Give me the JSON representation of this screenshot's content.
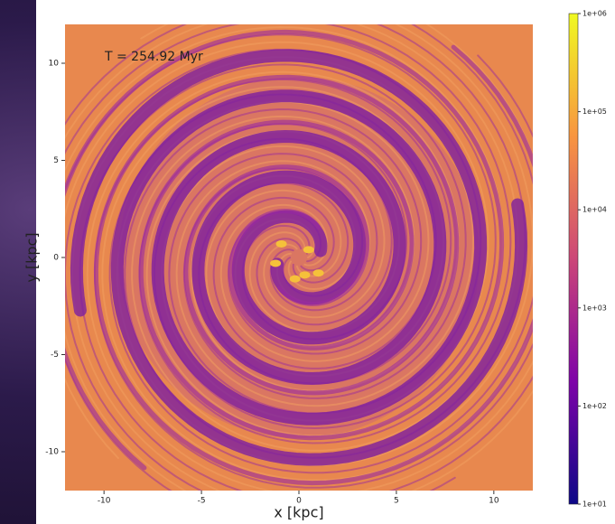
{
  "chart_data": {
    "type": "image",
    "annotation": "T = 254.92 Myr",
    "x_label": "x [kpc]",
    "y_label": "y [kpc]",
    "xlim": [
      -12,
      12
    ],
    "ylim": [
      -12,
      12
    ],
    "xticks": [
      -10,
      -5,
      0,
      5,
      10
    ],
    "yticks": [
      -10,
      -5,
      0,
      5,
      10
    ],
    "colorbar": {
      "lim": [
        10,
        1000000
      ],
      "log_scale": true,
      "ticks": [
        {
          "value": 10,
          "label": "1e+01"
        },
        {
          "value": 100,
          "label": "1e+02"
        },
        {
          "value": 1000,
          "label": "1e+03"
        },
        {
          "value": 10000,
          "label": "1e+04"
        },
        {
          "value": 100000,
          "label": "1e+05"
        },
        {
          "value": 1000000,
          "label": "1e+06"
        }
      ],
      "colormap": [
        "#0d0887",
        "#7e03a8",
        "#cc4778",
        "#f89540",
        "#f0f921"
      ]
    }
  }
}
